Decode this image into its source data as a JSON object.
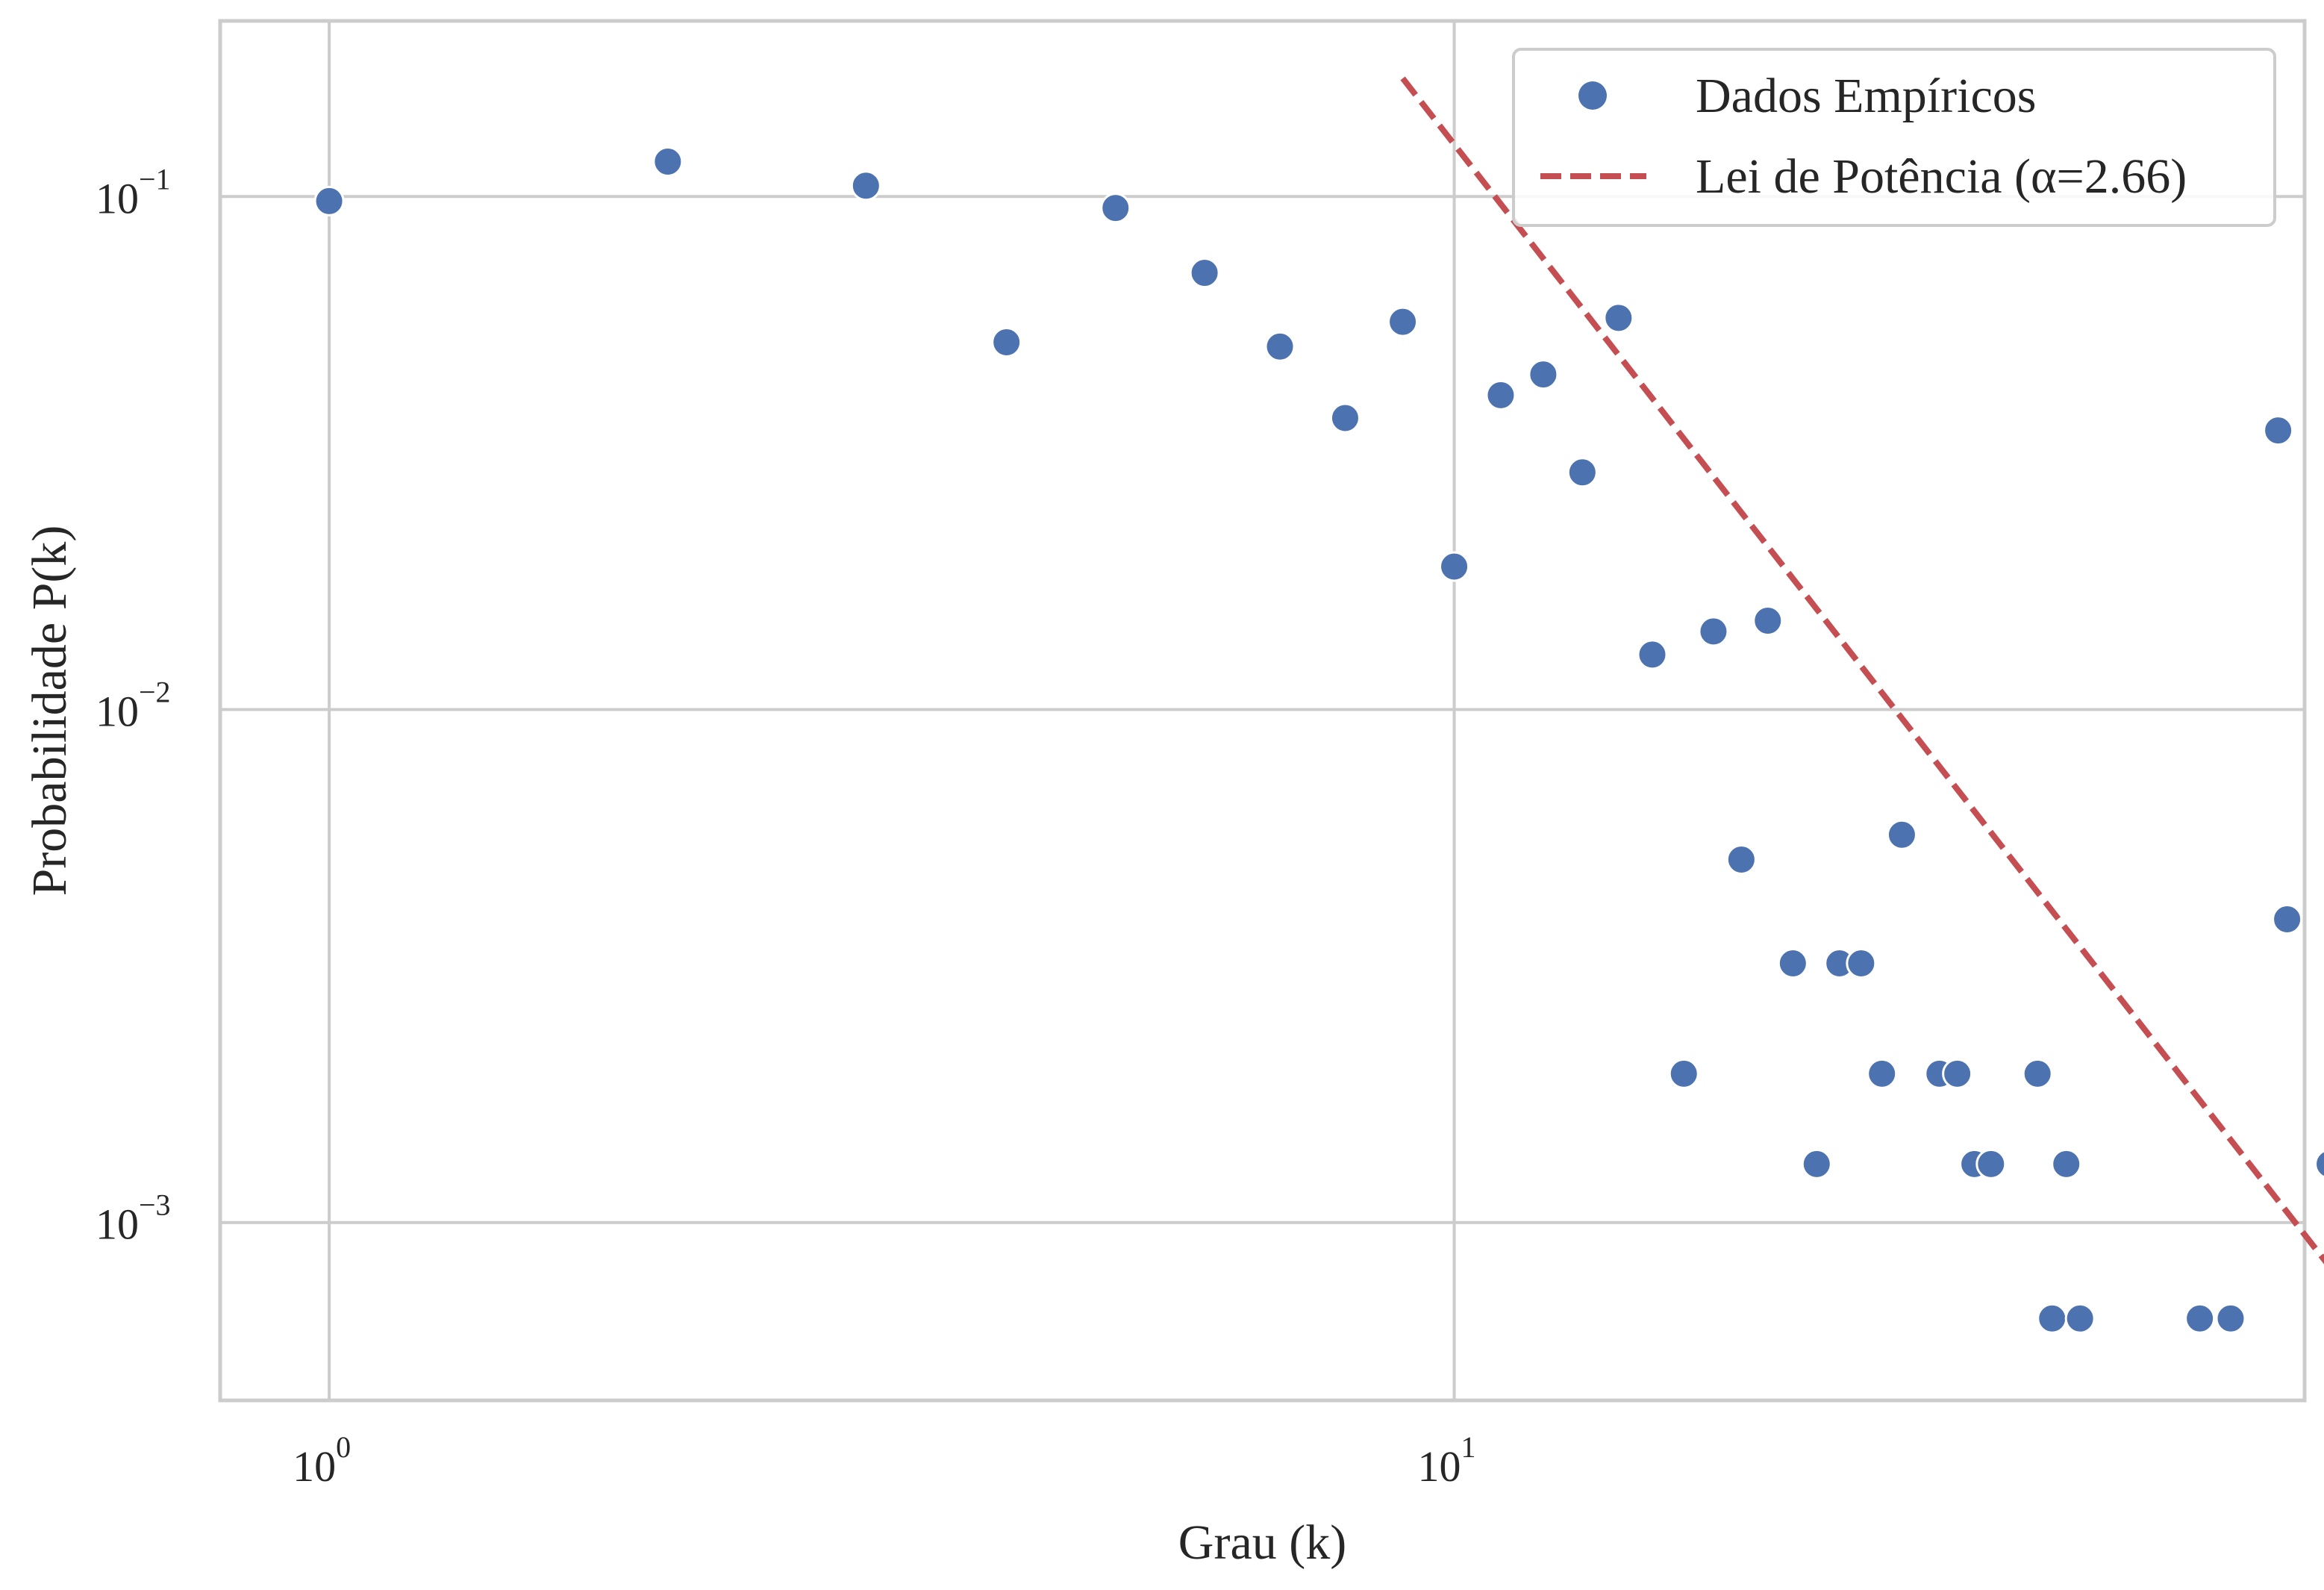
{
  "chart_data": {
    "type": "scatter",
    "xlabel": "Grau (k)",
    "ylabel": "Probabilidade P(k)",
    "xscale": "log",
    "yscale": "log",
    "xlim": [
      0.8,
      57
    ],
    "ylim": [
      0.00045,
      0.22
    ],
    "grid": true,
    "legend_position": "top-right",
    "x_ticks": [
      {
        "value": 1,
        "base": "10",
        "exp": "0"
      },
      {
        "value": 10,
        "base": "10",
        "exp": "1"
      }
    ],
    "y_ticks": [
      {
        "value": 0.1,
        "base": "10",
        "exp": "−1"
      },
      {
        "value": 0.01,
        "base": "10",
        "exp": "−2"
      },
      {
        "value": 0.001,
        "base": "10",
        "exp": "−3"
      }
    ],
    "series": [
      {
        "name": "Dados Empíricos",
        "kind": "scatter",
        "color": "#4c72b0",
        "points": [
          [
            1,
            0.098
          ],
          [
            2,
            0.117
          ],
          [
            3,
            0.105
          ],
          [
            4,
            0.052
          ],
          [
            5,
            0.095
          ],
          [
            6,
            0.071
          ],
          [
            7,
            0.051
          ],
          [
            8,
            0.037
          ],
          [
            9,
            0.057
          ],
          [
            10,
            0.019
          ],
          [
            11,
            0.041
          ],
          [
            12,
            0.045
          ],
          [
            13,
            0.029
          ],
          [
            14,
            0.058
          ],
          [
            15,
            0.0128
          ],
          [
            16,
            0.00195
          ],
          [
            17,
            0.0142
          ],
          [
            18,
            0.0051
          ],
          [
            19,
            0.0149
          ],
          [
            20,
            0.0032
          ],
          [
            21,
            0.0013
          ],
          [
            22,
            0.0032
          ],
          [
            23,
            0.0032
          ],
          [
            24,
            0.00195
          ],
          [
            25,
            0.0057
          ],
          [
            27,
            0.00195
          ],
          [
            28,
            0.00195
          ],
          [
            29,
            0.0013
          ],
          [
            30,
            0.0013
          ],
          [
            33,
            0.00195
          ],
          [
            34,
            0.00065
          ],
          [
            35,
            0.0013
          ],
          [
            36,
            0.00065
          ],
          [
            46,
            0.00065
          ],
          [
            49,
            0.00065
          ],
          [
            54,
            0.035
          ],
          [
            55,
            0.0039
          ],
          [
            60,
            0.0013
          ]
        ]
      },
      {
        "name": "Lei de Potência (α=2.66)",
        "kind": "line",
        "style": "dashed",
        "color": "#c44e52",
        "alpha": 2.66,
        "x_range": [
          9,
          60
        ],
        "y_range": [
          0.17,
          0.00082
        ]
      }
    ]
  }
}
